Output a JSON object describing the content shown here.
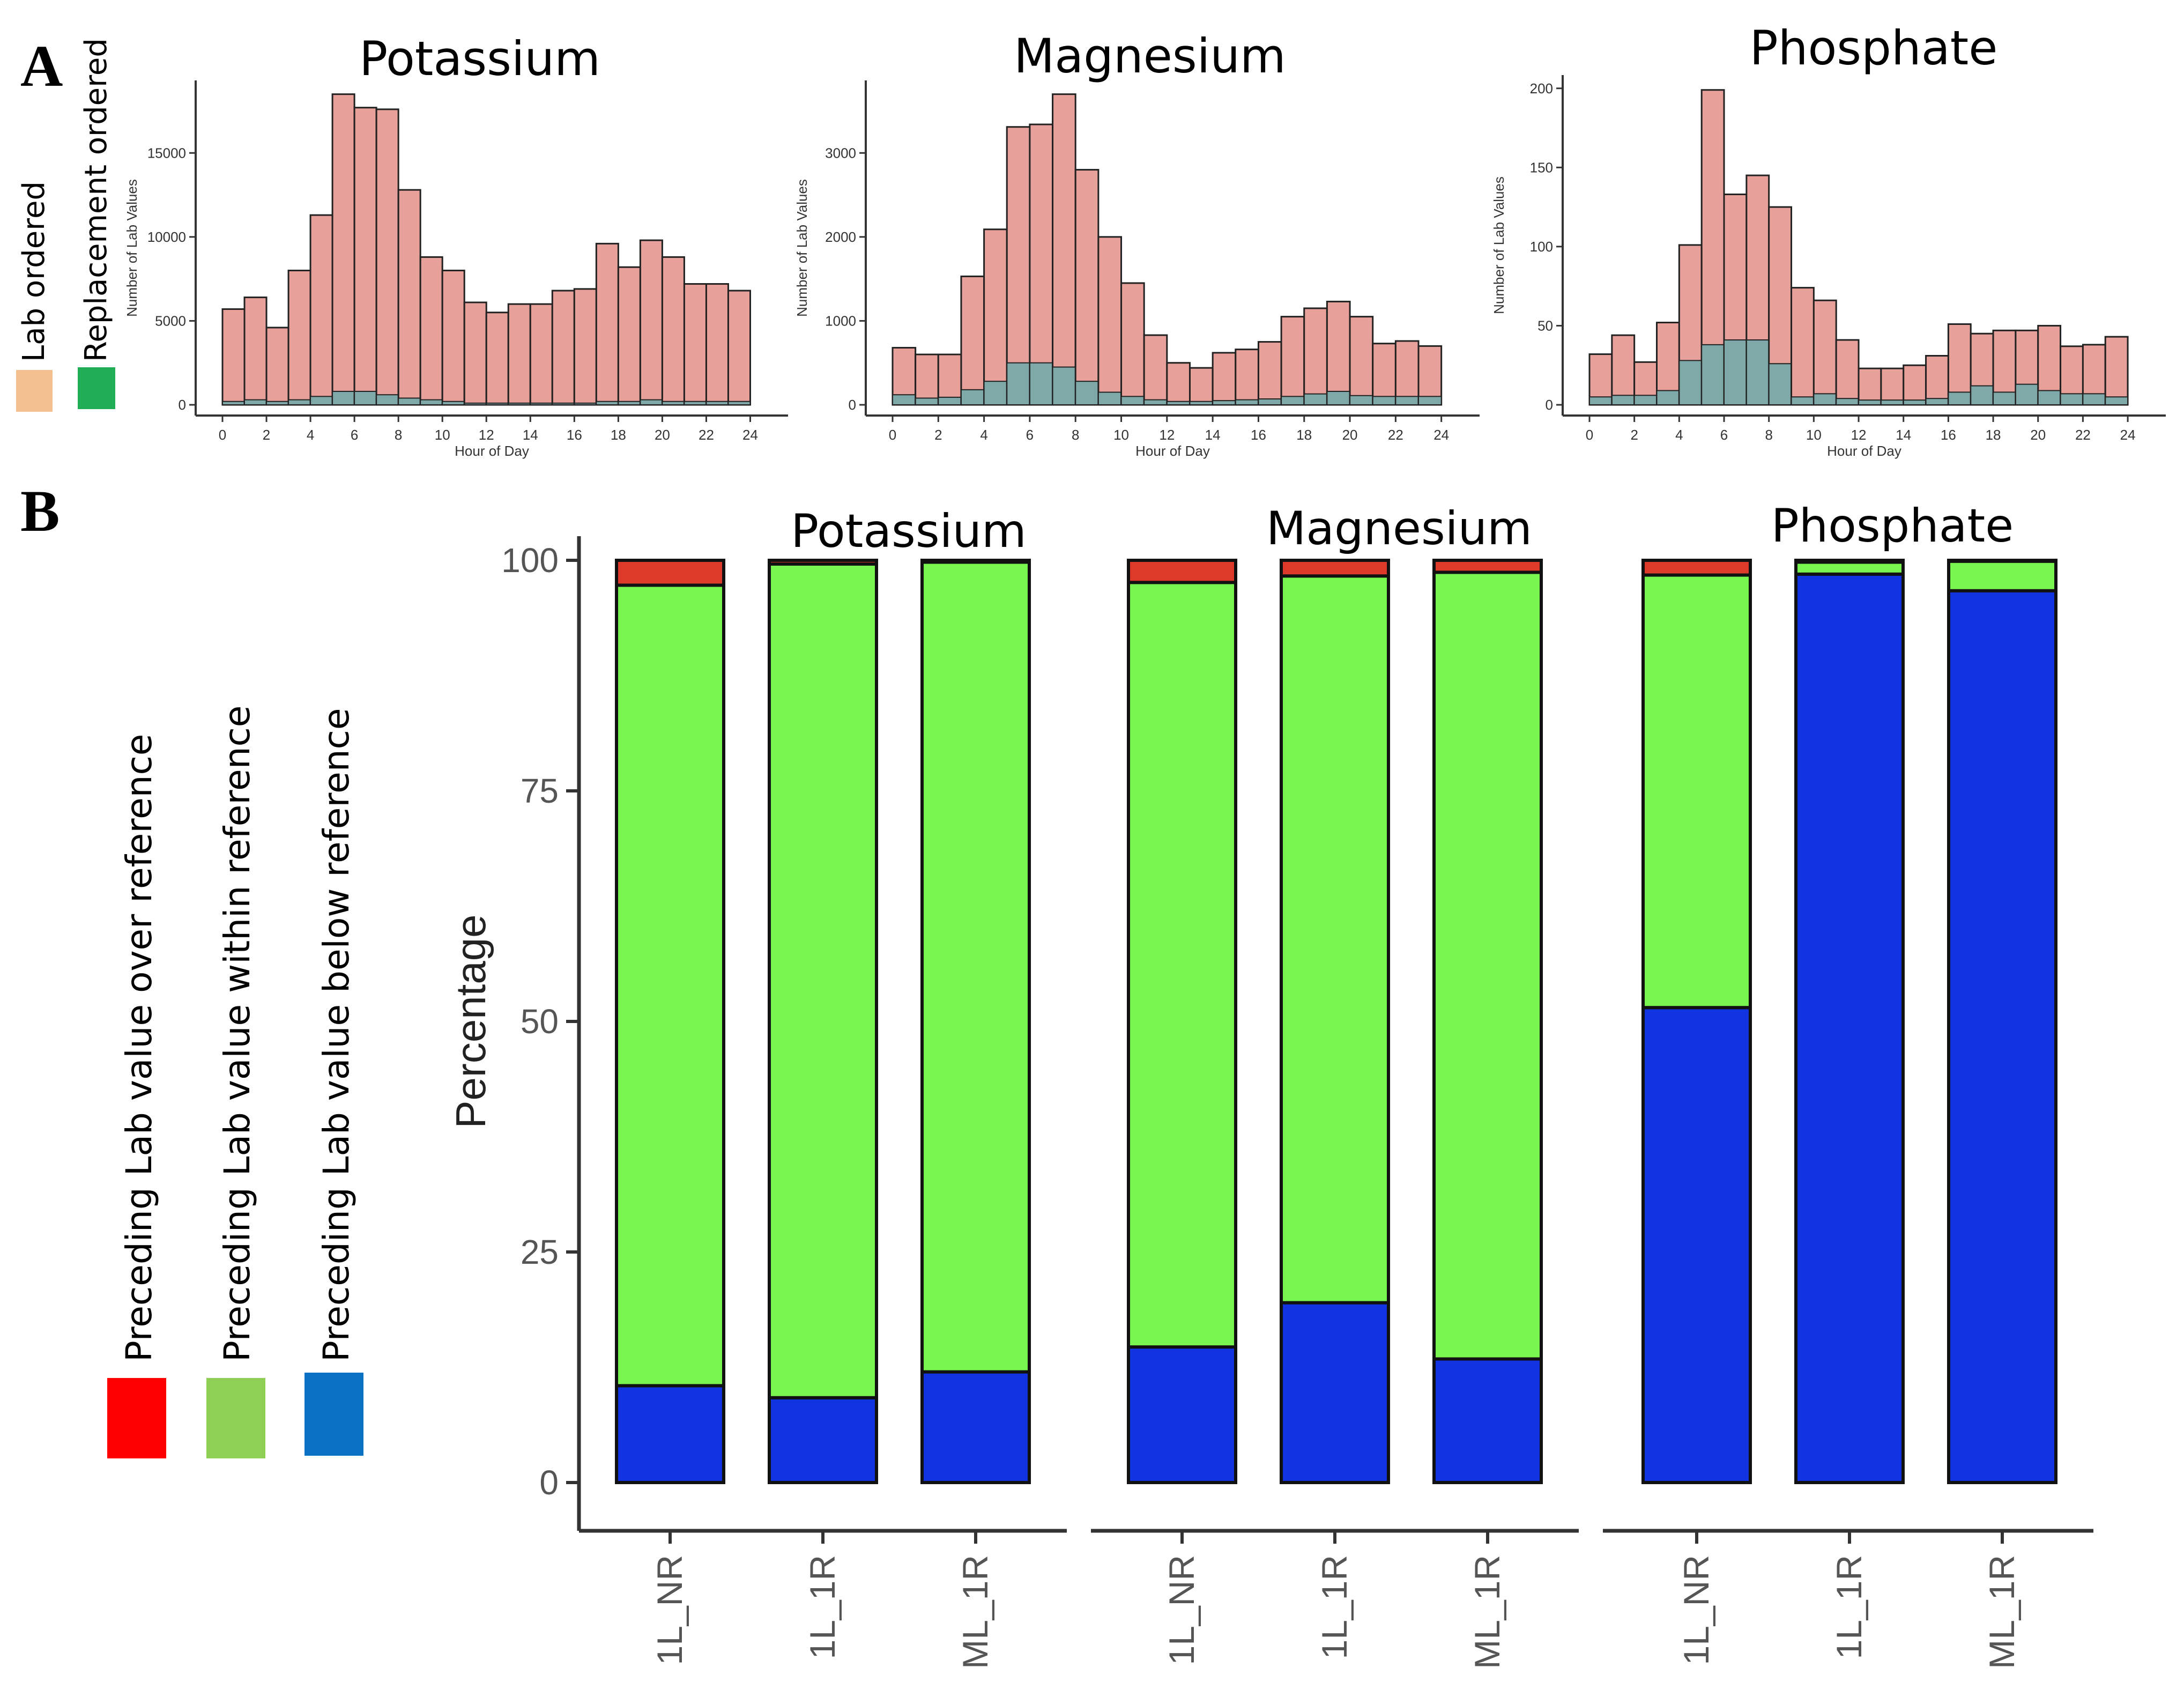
{
  "panels": {
    "a_label": "A",
    "b_label": "B"
  },
  "colors": {
    "order_bar": "#e8a09a",
    "replacement_bar": "#7fa9a8",
    "lab_ordered_swatch": "#f5c08f",
    "replacement_ordered_swatch": "#1fae55",
    "over_stack": "#dd3a2b",
    "within_stack": "#79f550",
    "below_stack": "#1133e0",
    "over_swatch": "#ff0000",
    "within_swatch": "#8fcf55",
    "below_swatch": "#0a72c2"
  },
  "legend_a": {
    "lab_ordered": "Lab ordered",
    "replacement_ordered": "Replacement ordered"
  },
  "legend_b": {
    "over": "Preceding Lab value over reference",
    "within": "Preceding Lab value within reference",
    "below": "Preceding Lab value below reference"
  },
  "chart_data": [
    {
      "type": "bar",
      "title": "Potassium",
      "xlabel": "Hour of Day",
      "ylabel": "Number of Lab Values",
      "x": [
        0,
        1,
        2,
        3,
        4,
        5,
        6,
        7,
        8,
        9,
        10,
        11,
        12,
        13,
        14,
        15,
        16,
        17,
        18,
        19,
        20,
        21,
        22,
        23
      ],
      "xticks": [
        0,
        2,
        4,
        6,
        8,
        10,
        12,
        14,
        16,
        18,
        20,
        22,
        24
      ],
      "yticks": [
        0,
        5000,
        10000,
        15000
      ],
      "ylim": [
        0,
        19000
      ],
      "series": [
        {
          "name": "Lab ordered",
          "values": [
            5700,
            6400,
            4600,
            8000,
            11300,
            18500,
            17700,
            17600,
            12800,
            8800,
            8000,
            6100,
            5500,
            6000,
            6000,
            6800,
            6900,
            9600,
            8200,
            9800,
            8800,
            7200,
            7200,
            6800
          ]
        },
        {
          "name": "Replacement ordered",
          "values": [
            200,
            300,
            200,
            300,
            500,
            800,
            800,
            600,
            400,
            300,
            200,
            100,
            100,
            100,
            100,
            100,
            100,
            200,
            200,
            300,
            200,
            200,
            200,
            200
          ]
        }
      ]
    },
    {
      "type": "bar",
      "title": "Magnesium",
      "xlabel": "Hour of Day",
      "ylabel": "Number of Lab Values",
      "x": [
        0,
        1,
        2,
        3,
        4,
        5,
        6,
        7,
        8,
        9,
        10,
        11,
        12,
        13,
        14,
        15,
        16,
        17,
        18,
        19,
        20,
        21,
        22,
        23
      ],
      "xticks": [
        0,
        2,
        4,
        6,
        8,
        10,
        12,
        14,
        16,
        18,
        20,
        22,
        24
      ],
      "yticks": [
        0,
        1000,
        2000,
        3000
      ],
      "ylim": [
        0,
        3800
      ],
      "series": [
        {
          "name": "Lab ordered",
          "values": [
            680,
            600,
            600,
            1530,
            2090,
            3310,
            3340,
            3700,
            2800,
            2000,
            1450,
            830,
            500,
            440,
            620,
            660,
            750,
            1050,
            1150,
            1230,
            1050,
            730,
            760,
            700
          ]
        },
        {
          "name": "Replacement ordered",
          "values": [
            120,
            80,
            90,
            180,
            280,
            500,
            500,
            450,
            280,
            150,
            100,
            60,
            40,
            40,
            50,
            60,
            70,
            100,
            130,
            160,
            110,
            100,
            100,
            100
          ]
        }
      ]
    },
    {
      "type": "bar",
      "title": "Phosphate",
      "xlabel": "Hour of Day",
      "ylabel": "Number of Lab Values",
      "x": [
        0,
        1,
        2,
        3,
        4,
        5,
        6,
        7,
        8,
        9,
        10,
        11,
        12,
        13,
        14,
        15,
        16,
        17,
        18,
        19,
        20,
        21,
        22,
        23
      ],
      "xticks": [
        0,
        2,
        4,
        6,
        8,
        10,
        12,
        14,
        16,
        18,
        20,
        22,
        24
      ],
      "yticks": [
        0,
        50,
        100,
        150,
        200
      ],
      "ylim": [
        0,
        205
      ],
      "series": [
        {
          "name": "Lab ordered",
          "values": [
            32,
            44,
            27,
            52,
            101,
            199,
            133,
            145,
            125,
            74,
            66,
            41,
            23,
            23,
            25,
            31,
            51,
            45,
            47,
            47,
            50,
            37,
            38,
            43
          ]
        },
        {
          "name": "Replacement ordered",
          "values": [
            5,
            6,
            6,
            9,
            28,
            38,
            41,
            41,
            26,
            5,
            7,
            4,
            3,
            3,
            3,
            4,
            8,
            12,
            8,
            13,
            9,
            7,
            7,
            5
          ]
        }
      ]
    },
    {
      "type": "bar",
      "stacked": true,
      "ylabel": "Percentage",
      "ylim": [
        0,
        100
      ],
      "yticks": [
        0,
        25,
        50,
        75,
        100
      ],
      "groups": [
        {
          "title": "Potassium",
          "categories": [
            "1L_NR",
            "1L_1R",
            "ML_1R"
          ]
        },
        {
          "title": "Magnesium",
          "categories": [
            "1L_NR",
            "1L_1R",
            "ML_1R"
          ]
        },
        {
          "title": "Phosphate",
          "categories": [
            "1L_NR",
            "1L_1R",
            "ML_1R"
          ]
        }
      ],
      "series": [
        {
          "name": "Preceding Lab value below reference",
          "values": [
            10.5,
            9.2,
            12.0,
            14.7,
            19.5,
            13.4,
            51.5,
            98.5,
            96.7
          ]
        },
        {
          "name": "Preceding Lab value within reference",
          "values": [
            86.8,
            90.4,
            87.8,
            82.9,
            78.8,
            85.3,
            46.9,
            1.3,
            3.2
          ]
        },
        {
          "name": "Preceding Lab value over reference",
          "values": [
            2.7,
            0.4,
            0.2,
            2.4,
            1.7,
            1.3,
            1.6,
            0.2,
            0.1
          ]
        }
      ]
    }
  ]
}
